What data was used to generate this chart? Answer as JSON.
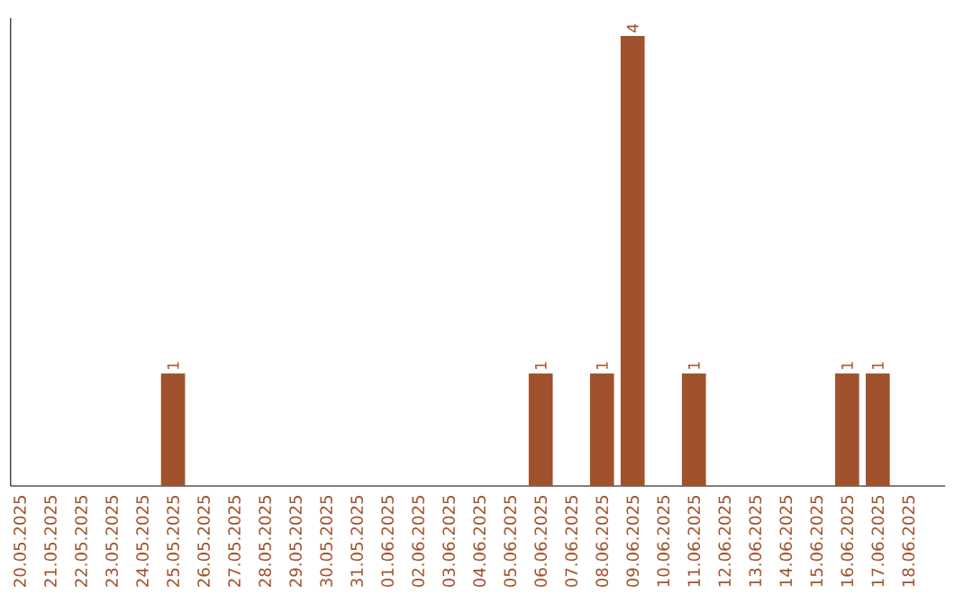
{
  "chart_data": {
    "type": "bar",
    "color": "#a0522d",
    "categories": [
      "20.05.2025",
      "21.05.2025",
      "22.05.2025",
      "23.05.2025",
      "24.05.2025",
      "25.05.2025",
      "26.05.2025",
      "27.05.2025",
      "28.05.2025",
      "29.05.2025",
      "30.05.2025",
      "31.05.2025",
      "01.06.2025",
      "02.06.2025",
      "03.06.2025",
      "04.06.2025",
      "05.06.2025",
      "06.06.2025",
      "07.06.2025",
      "08.06.2025",
      "09.06.2025",
      "10.06.2025",
      "11.06.2025",
      "12.06.2025",
      "13.06.2025",
      "14.06.2025",
      "15.06.2025",
      "16.06.2025",
      "17.06.2025",
      "18.06.2025"
    ],
    "values": [
      0,
      0,
      0,
      0,
      0,
      1,
      0,
      0,
      0,
      0,
      0,
      0,
      0,
      0,
      0,
      0,
      0,
      1,
      0,
      1,
      4,
      0,
      1,
      0,
      0,
      0,
      0,
      1,
      1,
      0
    ],
    "value_labels": [
      null,
      null,
      null,
      null,
      null,
      "1",
      null,
      null,
      null,
      null,
      null,
      null,
      null,
      null,
      null,
      null,
      null,
      "1",
      null,
      "1",
      "4",
      null,
      "1",
      null,
      null,
      null,
      null,
      "1",
      "1",
      null
    ],
    "tick_labels": "x",
    "grid": false
  }
}
